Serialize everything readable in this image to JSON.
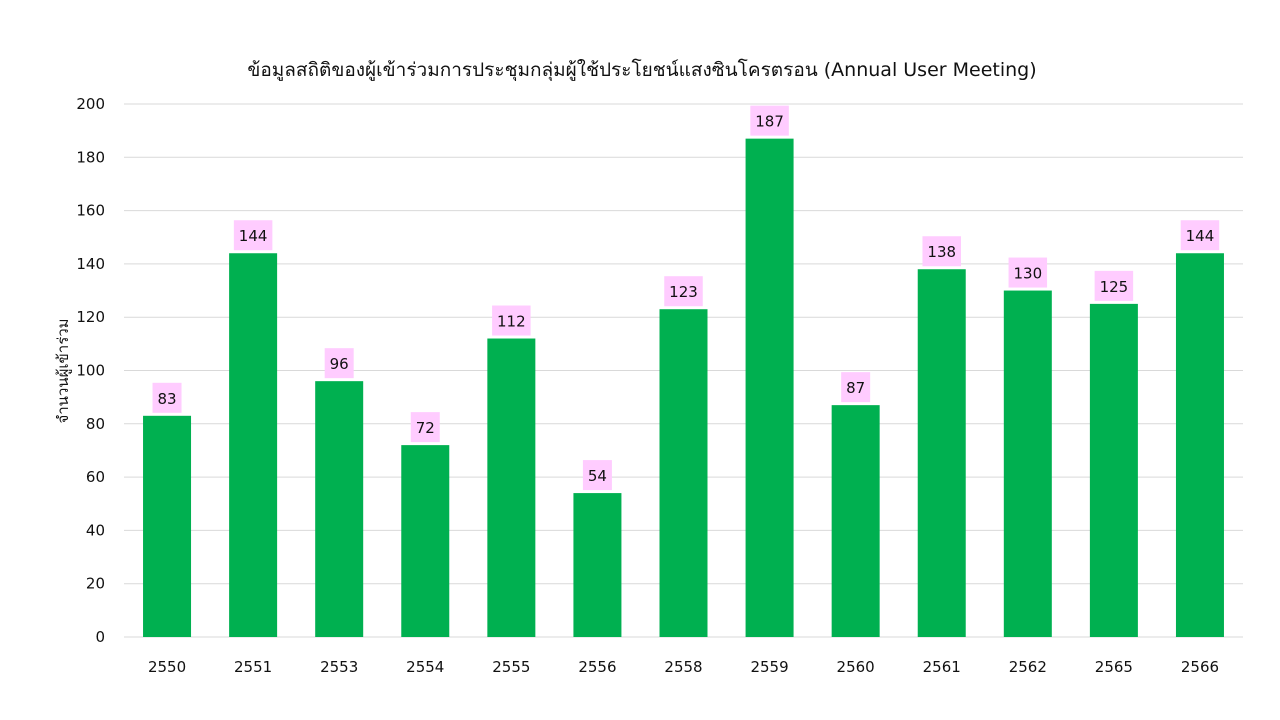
{
  "chart_data": {
    "type": "bar",
    "title": "ข้อมูลสถิติของผู้เข้าร่วมการประชุมกลุ่มผู้ใช้ประโยชน์แสงซินโครตรอน (Annual User Meeting)",
    "xlabel": "",
    "ylabel": "จำนวนผู้เข้าร่วม",
    "categories": [
      "2550",
      "2551",
      "2553",
      "2554",
      "2555",
      "2556",
      "2558",
      "2559",
      "2560",
      "2561",
      "2562",
      "2565",
      "2566"
    ],
    "values": [
      83,
      144,
      96,
      72,
      112,
      54,
      123,
      187,
      87,
      138,
      130,
      125,
      144
    ],
    "ylim": [
      0,
      200
    ],
    "yticks": [
      0,
      20,
      40,
      60,
      80,
      100,
      120,
      140,
      160,
      180,
      200
    ],
    "grid": true,
    "legend": "none",
    "data_labels": true,
    "colors": {
      "bar": "#00b050",
      "label_background": "#ffccff",
      "grid": "#d9d9d9",
      "text": "#111111"
    }
  }
}
